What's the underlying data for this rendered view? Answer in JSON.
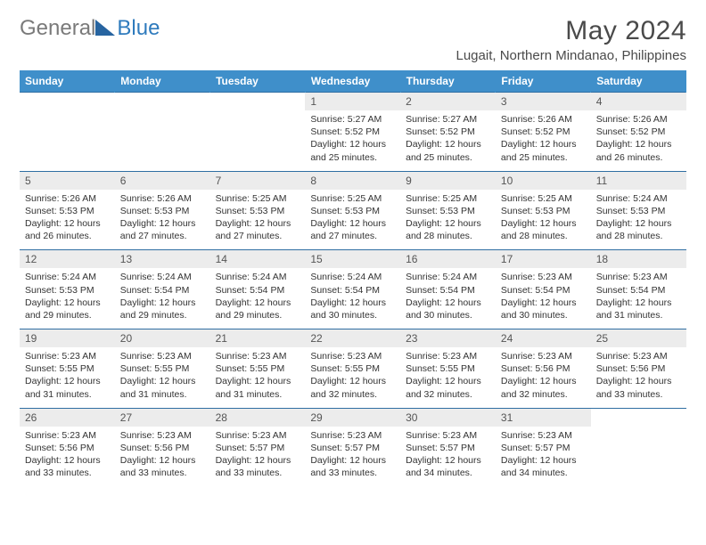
{
  "logo": {
    "text1": "General",
    "text2": "Blue"
  },
  "title": "May 2024",
  "location": "Lugait, Northern Mindanao, Philippines",
  "weekdays": [
    "Sunday",
    "Monday",
    "Tuesday",
    "Wednesday",
    "Thursday",
    "Friday",
    "Saturday"
  ],
  "colors": {
    "header_bg": "#3f8fca",
    "header_text": "#ffffff",
    "daynum_bg": "#ececec",
    "week_border": "#2f6ea2",
    "text": "#333333",
    "logo_gray": "#7a7a7a",
    "logo_blue": "#2f7bbd"
  },
  "weeks": [
    [
      null,
      null,
      null,
      {
        "n": "1",
        "sr": "5:27 AM",
        "ss": "5:52 PM",
        "dl": "12 hours and 25 minutes."
      },
      {
        "n": "2",
        "sr": "5:27 AM",
        "ss": "5:52 PM",
        "dl": "12 hours and 25 minutes."
      },
      {
        "n": "3",
        "sr": "5:26 AM",
        "ss": "5:52 PM",
        "dl": "12 hours and 25 minutes."
      },
      {
        "n": "4",
        "sr": "5:26 AM",
        "ss": "5:52 PM",
        "dl": "12 hours and 26 minutes."
      }
    ],
    [
      {
        "n": "5",
        "sr": "5:26 AM",
        "ss": "5:53 PM",
        "dl": "12 hours and 26 minutes."
      },
      {
        "n": "6",
        "sr": "5:26 AM",
        "ss": "5:53 PM",
        "dl": "12 hours and 27 minutes."
      },
      {
        "n": "7",
        "sr": "5:25 AM",
        "ss": "5:53 PM",
        "dl": "12 hours and 27 minutes."
      },
      {
        "n": "8",
        "sr": "5:25 AM",
        "ss": "5:53 PM",
        "dl": "12 hours and 27 minutes."
      },
      {
        "n": "9",
        "sr": "5:25 AM",
        "ss": "5:53 PM",
        "dl": "12 hours and 28 minutes."
      },
      {
        "n": "10",
        "sr": "5:25 AM",
        "ss": "5:53 PM",
        "dl": "12 hours and 28 minutes."
      },
      {
        "n": "11",
        "sr": "5:24 AM",
        "ss": "5:53 PM",
        "dl": "12 hours and 28 minutes."
      }
    ],
    [
      {
        "n": "12",
        "sr": "5:24 AM",
        "ss": "5:53 PM",
        "dl": "12 hours and 29 minutes."
      },
      {
        "n": "13",
        "sr": "5:24 AM",
        "ss": "5:54 PM",
        "dl": "12 hours and 29 minutes."
      },
      {
        "n": "14",
        "sr": "5:24 AM",
        "ss": "5:54 PM",
        "dl": "12 hours and 29 minutes."
      },
      {
        "n": "15",
        "sr": "5:24 AM",
        "ss": "5:54 PM",
        "dl": "12 hours and 30 minutes."
      },
      {
        "n": "16",
        "sr": "5:24 AM",
        "ss": "5:54 PM",
        "dl": "12 hours and 30 minutes."
      },
      {
        "n": "17",
        "sr": "5:23 AM",
        "ss": "5:54 PM",
        "dl": "12 hours and 30 minutes."
      },
      {
        "n": "18",
        "sr": "5:23 AM",
        "ss": "5:54 PM",
        "dl": "12 hours and 31 minutes."
      }
    ],
    [
      {
        "n": "19",
        "sr": "5:23 AM",
        "ss": "5:55 PM",
        "dl": "12 hours and 31 minutes."
      },
      {
        "n": "20",
        "sr": "5:23 AM",
        "ss": "5:55 PM",
        "dl": "12 hours and 31 minutes."
      },
      {
        "n": "21",
        "sr": "5:23 AM",
        "ss": "5:55 PM",
        "dl": "12 hours and 31 minutes."
      },
      {
        "n": "22",
        "sr": "5:23 AM",
        "ss": "5:55 PM",
        "dl": "12 hours and 32 minutes."
      },
      {
        "n": "23",
        "sr": "5:23 AM",
        "ss": "5:55 PM",
        "dl": "12 hours and 32 minutes."
      },
      {
        "n": "24",
        "sr": "5:23 AM",
        "ss": "5:56 PM",
        "dl": "12 hours and 32 minutes."
      },
      {
        "n": "25",
        "sr": "5:23 AM",
        "ss": "5:56 PM",
        "dl": "12 hours and 33 minutes."
      }
    ],
    [
      {
        "n": "26",
        "sr": "5:23 AM",
        "ss": "5:56 PM",
        "dl": "12 hours and 33 minutes."
      },
      {
        "n": "27",
        "sr": "5:23 AM",
        "ss": "5:56 PM",
        "dl": "12 hours and 33 minutes."
      },
      {
        "n": "28",
        "sr": "5:23 AM",
        "ss": "5:57 PM",
        "dl": "12 hours and 33 minutes."
      },
      {
        "n": "29",
        "sr": "5:23 AM",
        "ss": "5:57 PM",
        "dl": "12 hours and 33 minutes."
      },
      {
        "n": "30",
        "sr": "5:23 AM",
        "ss": "5:57 PM",
        "dl": "12 hours and 34 minutes."
      },
      {
        "n": "31",
        "sr": "5:23 AM",
        "ss": "5:57 PM",
        "dl": "12 hours and 34 minutes."
      },
      null
    ]
  ],
  "labels": {
    "sunrise": "Sunrise: ",
    "sunset": "Sunset: ",
    "daylight": "Daylight: "
  }
}
